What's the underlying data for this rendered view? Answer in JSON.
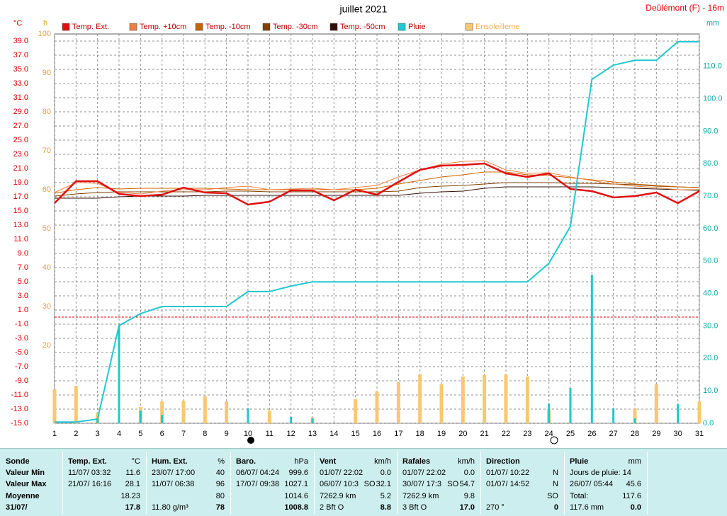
{
  "chart_data": {
    "type": "line",
    "title": "juillet 2021",
    "subtitle": "Deûlémont (F) - 16m",
    "ylabel": "°C",
    "y2label": "mm",
    "y3label": "h",
    "x": [
      1,
      2,
      3,
      4,
      5,
      6,
      7,
      8,
      9,
      10,
      11,
      12,
      13,
      14,
      15,
      16,
      17,
      18,
      19,
      20,
      21,
      22,
      23,
      24,
      25,
      26,
      27,
      28,
      29,
      30,
      31
    ],
    "xlim": [
      1,
      31
    ],
    "xticks": [
      1,
      2,
      3,
      4,
      5,
      6,
      7,
      8,
      9,
      10,
      11,
      12,
      13,
      14,
      15,
      16,
      17,
      18,
      19,
      20,
      21,
      22,
      23,
      24,
      25,
      26,
      27,
      28,
      29,
      30,
      31
    ],
    "ylim": [
      -15,
      40
    ],
    "yticks": [
      {
        "value": -15,
        "label": "-15.0"
      },
      {
        "value": -13,
        "label": "-13.0"
      },
      {
        "value": -11,
        "label": "-11.0"
      },
      {
        "value": -9,
        "label": "-9.0"
      },
      {
        "value": -7,
        "label": "-7.0"
      },
      {
        "value": -5,
        "label": "-5.0"
      },
      {
        "value": -3,
        "label": "-3.0"
      },
      {
        "value": -1,
        "label": "-1.0"
      },
      {
        "value": 1,
        "label": "1.0"
      },
      {
        "value": 3,
        "label": "3.0"
      },
      {
        "value": 5,
        "label": "5.0"
      },
      {
        "value": 7,
        "label": "7.0"
      },
      {
        "value": 9,
        "label": "9.0"
      },
      {
        "value": 11,
        "label": "11.0"
      },
      {
        "value": 13,
        "label": "13.0"
      },
      {
        "value": 15,
        "label": "15.0"
      },
      {
        "value": 17,
        "label": "17.0"
      },
      {
        "value": 19,
        "label": "19.0"
      },
      {
        "value": 21,
        "label": "21.0"
      },
      {
        "value": 23,
        "label": "23.0"
      },
      {
        "value": 25,
        "label": "25.0"
      },
      {
        "value": 27,
        "label": "27.0"
      },
      {
        "value": 29,
        "label": "29.0"
      },
      {
        "value": 31,
        "label": "31.0"
      },
      {
        "value": 33,
        "label": "33.0"
      },
      {
        "value": 35,
        "label": "35.0"
      },
      {
        "value": 37,
        "label": "37.0"
      },
      {
        "value": 39,
        "label": "39.0"
      }
    ],
    "y2lim": [
      0,
      120
    ],
    "y2ticks": [
      {
        "value": 0,
        "label": "0.0"
      },
      {
        "value": 10,
        "label": "10.0"
      },
      {
        "value": 20,
        "label": "20.0"
      },
      {
        "value": 30,
        "label": "30.0"
      },
      {
        "value": 40,
        "label": "40.0"
      },
      {
        "value": 50,
        "label": "50.0"
      },
      {
        "value": 60,
        "label": "60.0"
      },
      {
        "value": 70,
        "label": "70.0"
      },
      {
        "value": 80,
        "label": "80.0"
      },
      {
        "value": 90,
        "label": "90.0"
      },
      {
        "value": 100,
        "label": "100.0"
      },
      {
        "value": 110,
        "label": "110.0"
      }
    ],
    "y3lim": [
      0,
      100
    ],
    "y3ticks": [
      20,
      30,
      40,
      50,
      60,
      70,
      80,
      90,
      100
    ],
    "grid": true,
    "reference_line": 0,
    "series": [
      {
        "name": "Ensoleilleme",
        "type": "bar",
        "axis": "y3",
        "color": "#f8c870",
        "values": [
          8.7,
          9.6,
          2.7,
          0,
          4.2,
          5.6,
          5.8,
          6.9,
          5.6,
          0,
          3.3,
          0,
          1.5,
          0,
          6.2,
          8.2,
          10.5,
          12.5,
          10.0,
          12.0,
          12.4,
          12.5,
          12.0,
          3.6,
          0,
          0,
          0,
          3.8,
          10.0,
          0,
          5.6
        ]
      },
      {
        "type": "bar",
        "axis": "y2",
        "color": "#20c8c8",
        "values": [
          0,
          0,
          1.3,
          30.1,
          3.9,
          2.6,
          0,
          0,
          0,
          4.6,
          0,
          2.0,
          1.5,
          0,
          0,
          0,
          0,
          0,
          0,
          0,
          0,
          0,
          0,
          6.1,
          10.9,
          45.8,
          4.6,
          1.5,
          0,
          5.9,
          0
        ]
      },
      {
        "name": "Temp. -50cm",
        "type": "line",
        "color": "#301008",
        "width": 1,
        "values": [
          16.8,
          16.8,
          16.8,
          17.0,
          17.1,
          17.1,
          17.1,
          17.2,
          17.2,
          17.2,
          17.2,
          17.2,
          17.2,
          17.2,
          17.2,
          17.2,
          17.2,
          17.5,
          17.7,
          17.8,
          18.2,
          18.4,
          18.4,
          18.4,
          18.4,
          18.4,
          18.3,
          18.2,
          18.1,
          18.0,
          17.9
        ]
      },
      {
        "name": "Temp. -30cm",
        "type": "line",
        "color": "#804000",
        "width": 1,
        "values": [
          17.1,
          17.4,
          17.6,
          17.7,
          17.7,
          17.7,
          17.7,
          17.7,
          17.8,
          17.8,
          17.7,
          17.7,
          17.7,
          17.7,
          17.7,
          17.7,
          17.8,
          18.3,
          18.5,
          18.6,
          18.8,
          19.0,
          19.0,
          19.0,
          18.9,
          18.9,
          18.8,
          18.7,
          18.5,
          18.4,
          18.3
        ]
      },
      {
        "name": "Temp. -10cm",
        "type": "line",
        "color": "#c86400",
        "width": 1,
        "values": [
          17.5,
          18.0,
          18.3,
          18.1,
          18.2,
          18.2,
          18.2,
          18.2,
          18.1,
          18.0,
          18.0,
          18.0,
          18.0,
          18.0,
          18.0,
          18.2,
          18.8,
          19.3,
          19.8,
          20.1,
          20.5,
          20.5,
          20.1,
          20.0,
          19.7,
          19.4,
          19.1,
          18.8,
          18.6,
          18.4,
          18.3
        ]
      },
      {
        "name": "Temp. +10cm",
        "type": "line",
        "color": "#f08040",
        "width": 1,
        "values": [
          17.6,
          19.0,
          18.9,
          17.6,
          17.4,
          17.8,
          18.0,
          18.0,
          18.3,
          18.5,
          18.0,
          18.1,
          18.2,
          18.0,
          18.3,
          18.6,
          19.8,
          20.8,
          21.6,
          22.0,
          22.1,
          20.8,
          20.3,
          20.4,
          19.8,
          19.3,
          18.8,
          18.5,
          18.3,
          18.0,
          18.0
        ]
      },
      {
        "name": "Temp. Ext.",
        "type": "line",
        "color": "#e01010",
        "width": 2.5,
        "values": [
          16.1,
          19.2,
          19.2,
          17.4,
          17.1,
          17.3,
          18.3,
          17.6,
          17.5,
          15.9,
          16.3,
          17.9,
          17.9,
          16.5,
          18.0,
          17.3,
          19.1,
          20.8,
          21.4,
          21.5,
          21.7,
          20.3,
          19.8,
          20.3,
          18.1,
          17.8,
          16.9,
          17.1,
          17.6,
          16.1,
          17.8
        ]
      },
      {
        "name": "Pluie",
        "type": "line",
        "axis": "y2",
        "color": "#20c8d0",
        "width": 2,
        "values": [
          0.4,
          0.4,
          1.3,
          30.1,
          33.8,
          36.0,
          36.0,
          36.0,
          36.0,
          40.6,
          40.6,
          42.3,
          43.6,
          43.6,
          43.6,
          43.6,
          43.6,
          43.6,
          43.6,
          43.6,
          43.6,
          43.6,
          43.6,
          49.3,
          60.7,
          106.0,
          110.4,
          111.9,
          111.9,
          117.6,
          117.6
        ]
      }
    ],
    "legend_order": [
      "Temp. Ext.",
      "Temp. +10cm",
      "Temp. -10cm",
      "Temp. -30cm",
      "Temp. -50cm",
      "Pluie",
      "Ensoleilleme"
    ]
  },
  "table": {
    "columns": [
      [
        "Sonde"
      ],
      [
        "Temp. Ext.",
        "°C"
      ],
      [
        "Hum. Ext.",
        "%"
      ],
      [
        "Baro.",
        "hPa"
      ],
      [
        "Vent",
        "km/h"
      ],
      [
        "Rafales",
        "km/h"
      ],
      [
        "Direction"
      ],
      [
        "Pluie",
        "mm"
      ]
    ],
    "rows": [
      [
        [
          "Valeur Min"
        ],
        [
          "11/07/ 03:32",
          "11.6"
        ],
        [
          "23/07/ 17:00",
          "40"
        ],
        [
          "06/07/ 04:24",
          "999.6"
        ],
        [
          "01/07/ 22:02",
          "0.0"
        ],
        [
          "01/07/ 22:02",
          "0.0"
        ],
        [
          "01/07/ 10:22",
          "N"
        ],
        [
          "Jours de pluie: 14"
        ]
      ],
      [
        [
          "Valeur Max"
        ],
        [
          "21/07/ 16:16",
          "28.1"
        ],
        [
          "11/07/ 06:38",
          "96"
        ],
        [
          "17/07/ 09:38",
          "1027.1"
        ],
        [
          "06/07/ 10:3",
          "SO",
          "32.1"
        ],
        [
          "30/07/ 17:3",
          "SO",
          "54.7"
        ],
        [
          "01/07/ 14:52",
          "N"
        ],
        [
          "26/07/ 05:44",
          "45.6"
        ]
      ],
      [
        [
          "Moyenne"
        ],
        [
          "18.23"
        ],
        [
          "80"
        ],
        [
          "1014.6"
        ],
        [
          "7262.9 km",
          "5.2"
        ],
        [
          "7262.9 km",
          "9.8"
        ],
        [
          "SO"
        ],
        [
          "Total:",
          "117.6"
        ]
      ],
      [
        [
          "31/07/"
        ],
        [
          "17.8"
        ],
        [
          "11.80 g/m³",
          "78"
        ],
        [
          "1008.8"
        ],
        [
          "2 Bft O",
          "8.8"
        ],
        [
          "3 Bft O",
          "17.0"
        ],
        [
          "270 °",
          "0"
        ],
        [
          "117.6 mm",
          "0.0"
        ]
      ]
    ]
  }
}
